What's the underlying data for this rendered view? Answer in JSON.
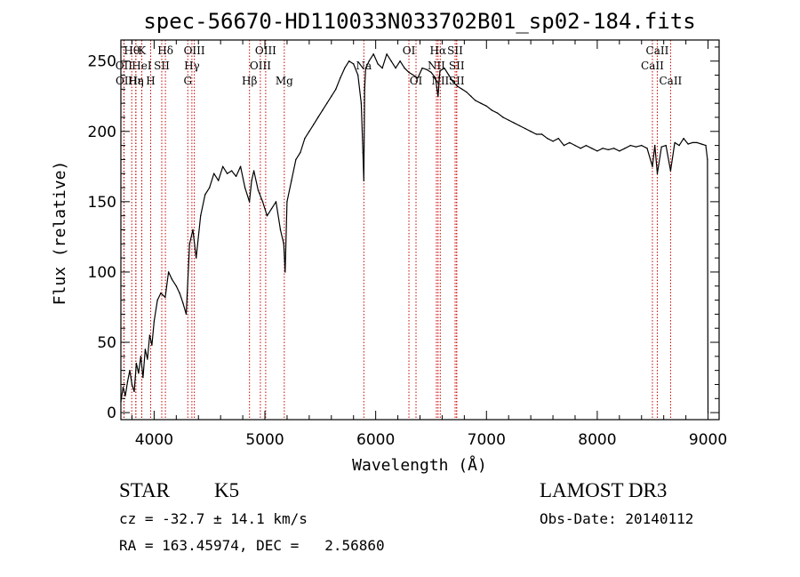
{
  "chart_data": {
    "type": "line",
    "title": "spec-56670-HD110033N033702B01_sp02-184.fits",
    "xlabel": "Wavelength (Å)",
    "ylabel": "Flux (relative)",
    "xlim": [
      3700,
      9100
    ],
    "ylim": [
      -5,
      265
    ],
    "xticks": [
      4000,
      5000,
      6000,
      7000,
      8000,
      9000
    ],
    "yticks": [
      0,
      50,
      100,
      150,
      200,
      250
    ],
    "colors": {
      "spectrum": "#000000",
      "line_marker": "#cc0000",
      "axes": "#000000"
    },
    "series": [
      {
        "name": "spectrum",
        "x": [
          3700,
          3720,
          3740,
          3760,
          3780,
          3800,
          3820,
          3840,
          3860,
          3880,
          3900,
          3920,
          3940,
          3960,
          3980,
          4000,
          4030,
          4060,
          4100,
          4130,
          4160,
          4200,
          4230,
          4260,
          4290,
          4320,
          4350,
          4380,
          4420,
          4460,
          4500,
          4540,
          4580,
          4620,
          4660,
          4700,
          4740,
          4780,
          4820,
          4860,
          4880,
          4900,
          4940,
          4980,
          5020,
          5060,
          5100,
          5140,
          5170,
          5183,
          5200,
          5240,
          5280,
          5320,
          5360,
          5400,
          5440,
          5480,
          5520,
          5560,
          5600,
          5640,
          5680,
          5720,
          5760,
          5800,
          5840,
          5870,
          5885,
          5893,
          5900,
          5910,
          5940,
          5980,
          6020,
          6060,
          6100,
          6140,
          6180,
          6220,
          6260,
          6300,
          6340,
          6380,
          6420,
          6460,
          6500,
          6540,
          6563,
          6580,
          6620,
          6660,
          6700,
          6740,
          6780,
          6820,
          6860,
          6900,
          6950,
          7000,
          7050,
          7100,
          7150,
          7200,
          7250,
          7300,
          7350,
          7400,
          7450,
          7500,
          7550,
          7600,
          7650,
          7700,
          7750,
          7800,
          7850,
          7900,
          7950,
          8000,
          8050,
          8100,
          8150,
          8200,
          8250,
          8300,
          8350,
          8400,
          8450,
          8498,
          8520,
          8542,
          8580,
          8620,
          8662,
          8700,
          8740,
          8780,
          8820,
          8860,
          8900,
          8940,
          8980,
          8995,
          9000
        ],
        "y": [
          8,
          18,
          12,
          22,
          30,
          20,
          15,
          35,
          28,
          40,
          25,
          45,
          38,
          55,
          48,
          65,
          80,
          85,
          82,
          100,
          95,
          90,
          85,
          78,
          70,
          120,
          130,
          110,
          140,
          155,
          160,
          170,
          165,
          175,
          170,
          172,
          168,
          175,
          160,
          150,
          165,
          172,
          158,
          150,
          140,
          145,
          150,
          130,
          120,
          100,
          150,
          165,
          180,
          185,
          195,
          200,
          205,
          210,
          215,
          220,
          225,
          230,
          238,
          245,
          250,
          248,
          240,
          220,
          185,
          165,
          230,
          245,
          250,
          255,
          248,
          245,
          255,
          250,
          245,
          250,
          245,
          242,
          240,
          238,
          245,
          244,
          242,
          238,
          225,
          243,
          245,
          240,
          235,
          232,
          230,
          228,
          225,
          222,
          220,
          218,
          215,
          213,
          210,
          208,
          206,
          204,
          202,
          200,
          198,
          198,
          195,
          193,
          195,
          190,
          192,
          190,
          188,
          190,
          188,
          186,
          188,
          187,
          188,
          186,
          188,
          190,
          189,
          190,
          188,
          175,
          190,
          170,
          189,
          190,
          172,
          192,
          190,
          195,
          191,
          192,
          192,
          191,
          190,
          180,
          0
        ]
      }
    ],
    "lines": [
      {
        "name": "Hθ",
        "x": 3798,
        "row": 0
      },
      {
        "name": "OII",
        "x": 3727,
        "row": 1
      },
      {
        "name": "OII",
        "x": 3729,
        "row": 2
      },
      {
        "name": "Hε",
        "x": 3835,
        "row": 2
      },
      {
        "name": "K",
        "x": 3889,
        "row": 0
      },
      {
        "name": "HeI",
        "x": 3888,
        "row": 1
      },
      {
        "name": "Hη",
        "x": 3835,
        "row": 2
      },
      {
        "name": "SII",
        "x": 4069,
        "row": 1
      },
      {
        "name": "Hδ",
        "x": 4102,
        "row": 0
      },
      {
        "name": "H",
        "x": 3969,
        "row": 2
      },
      {
        "name": "OIII",
        "x": 4363,
        "row": 0
      },
      {
        "name": "Hγ",
        "x": 4341,
        "row": 1
      },
      {
        "name": "G",
        "x": 4304,
        "row": 2
      },
      {
        "name": "Hβ",
        "x": 4861,
        "row": 2
      },
      {
        "name": "OIII",
        "x": 5007,
        "row": 0
      },
      {
        "name": "OIII",
        "x": 4959,
        "row": 1
      },
      {
        "name": "Mg",
        "x": 5175,
        "row": 2
      },
      {
        "name": "Na",
        "x": 5893,
        "row": 1
      },
      {
        "name": "OI",
        "x": 6300,
        "row": 0
      },
      {
        "name": "OI",
        "x": 6364,
        "row": 2
      },
      {
        "name": "Hα",
        "x": 6563,
        "row": 0
      },
      {
        "name": "NII",
        "x": 6548,
        "row": 1
      },
      {
        "name": "NII",
        "x": 6583,
        "row": 2
      },
      {
        "name": "SII",
        "x": 6717,
        "row": 0
      },
      {
        "name": "SII",
        "x": 6731,
        "row": 1
      },
      {
        "name": "SII",
        "x": 6731,
        "row": 2
      },
      {
        "name": "CaII",
        "x": 8542,
        "row": 0
      },
      {
        "name": "CaII",
        "x": 8498,
        "row": 1
      },
      {
        "name": "CaII",
        "x": 8662,
        "row": 2
      }
    ]
  },
  "info": {
    "class": "STAR",
    "subclass": "K5",
    "survey": "LAMOST DR3",
    "cz": "cz = -32.7 ± 14.1 km/s",
    "obs_date": "Obs-Date: 20140112",
    "radec": "RA = 163.45974, DEC =   2.56860"
  }
}
